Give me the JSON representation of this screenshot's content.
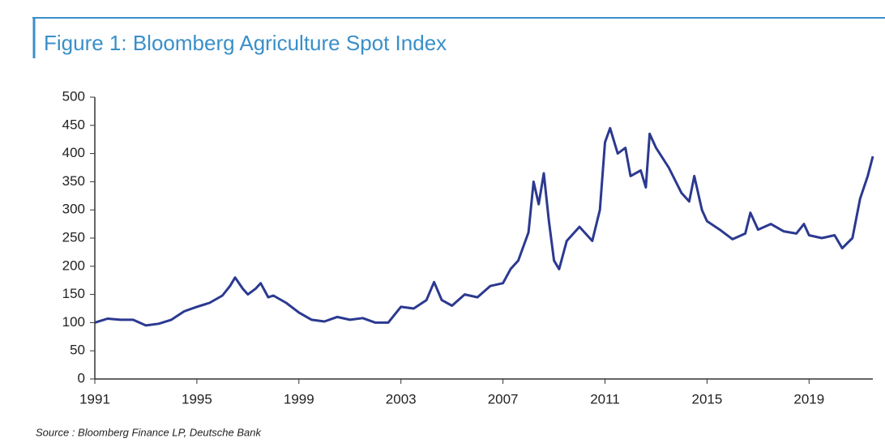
{
  "chart_data": {
    "type": "line",
    "title": "Figure 1: Bloomberg Agriculture Spot Index",
    "source": "Source : Bloomberg Finance LP, Deutsche Bank",
    "x": [
      1991,
      1991.5,
      1992,
      1992.5,
      1993,
      1993.5,
      1994,
      1994.5,
      1995,
      1995.5,
      1996,
      1996.3,
      1996.5,
      1996.8,
      1997,
      1997.3,
      1997.5,
      1997.8,
      1998,
      1998.5,
      1999,
      1999.5,
      2000,
      2000.5,
      2001,
      2001.5,
      2002,
      2002.5,
      2003,
      2003.5,
      2004,
      2004.3,
      2004.6,
      2005,
      2005.5,
      2006,
      2006.5,
      2007,
      2007.3,
      2007.6,
      2008,
      2008.2,
      2008.4,
      2008.6,
      2008.8,
      2009,
      2009.2,
      2009.5,
      2010,
      2010.5,
      2010.8,
      2011,
      2011.2,
      2011.5,
      2011.8,
      2012,
      2012.4,
      2012.6,
      2012.75,
      2013,
      2013.5,
      2014,
      2014.3,
      2014.5,
      2014.8,
      2015,
      2015.5,
      2016,
      2016.5,
      2016.7,
      2017,
      2017.5,
      2018,
      2018.5,
      2018.8,
      2019,
      2019.5,
      2020,
      2020.3,
      2020.7,
      2021,
      2021.3,
      2021.5
    ],
    "series": [
      {
        "name": "Bloomberg Agriculture Spot Index",
        "color": "#2b3990",
        "values": [
          100,
          107,
          105,
          105,
          95,
          98,
          105,
          120,
          128,
          135,
          148,
          165,
          180,
          160,
          150,
          160,
          170,
          145,
          148,
          135,
          118,
          105,
          102,
          110,
          105,
          108,
          100,
          100,
          128,
          125,
          140,
          172,
          140,
          130,
          150,
          145,
          165,
          170,
          195,
          210,
          260,
          350,
          310,
          365,
          280,
          210,
          195,
          245,
          270,
          245,
          300,
          420,
          445,
          400,
          410,
          360,
          370,
          340,
          435,
          410,
          375,
          330,
          315,
          360,
          300,
          280,
          265,
          248,
          258,
          295,
          265,
          275,
          262,
          258,
          275,
          255,
          250,
          255,
          232,
          250,
          320,
          360,
          395
        ]
      }
    ],
    "xlim": [
      1991,
      2021.5
    ],
    "xticks": [
      1991,
      1995,
      1999,
      2003,
      2007,
      2011,
      2015,
      2019
    ],
    "ylim": [
      0,
      500
    ],
    "yticks": [
      0,
      50,
      100,
      150,
      200,
      250,
      300,
      350,
      400,
      450,
      500
    ]
  }
}
